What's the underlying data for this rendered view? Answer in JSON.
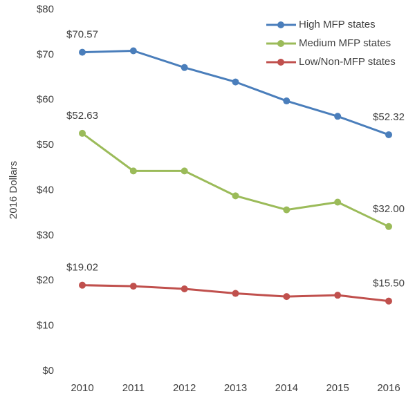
{
  "chart_data": {
    "type": "line",
    "y_label": "2016 Dollars",
    "categories": [
      "2010",
      "2011",
      "2012",
      "2013",
      "2014",
      "2015",
      "2016"
    ],
    "series": [
      {
        "name": "High MFP states",
        "color": "#4a7ebb",
        "values": [
          70.57,
          70.9,
          67.2,
          64.0,
          59.8,
          56.4,
          52.32
        ],
        "value_labels": [
          "$70.57",
          null,
          null,
          null,
          null,
          null,
          "$52.32"
        ]
      },
      {
        "name": "Medium MFP states",
        "color": "#9bbb59",
        "values": [
          52.63,
          44.3,
          44.3,
          38.8,
          35.7,
          37.4,
          32.0
        ],
        "value_labels": [
          "$52.63",
          null,
          null,
          null,
          null,
          null,
          "$32.00"
        ]
      },
      {
        "name": "Low/Non-MFP states",
        "color": "#c0504d",
        "values": [
          19.02,
          18.8,
          18.2,
          17.2,
          16.5,
          16.8,
          15.5
        ],
        "value_labels": [
          "$19.02",
          null,
          null,
          null,
          null,
          null,
          "$15.50"
        ]
      }
    ],
    "ylim": [
      0,
      80
    ],
    "yticks": [
      {
        "value": 0,
        "label": "$0"
      },
      {
        "value": 10,
        "label": "$10"
      },
      {
        "value": 20,
        "label": "$20"
      },
      {
        "value": 30,
        "label": "$30"
      },
      {
        "value": 40,
        "label": "$40"
      },
      {
        "value": 50,
        "label": "$50"
      },
      {
        "value": 60,
        "label": "$60"
      },
      {
        "value": 70,
        "label": "$70"
      },
      {
        "value": 80,
        "label": "$80"
      }
    ],
    "legend": "top-right"
  }
}
